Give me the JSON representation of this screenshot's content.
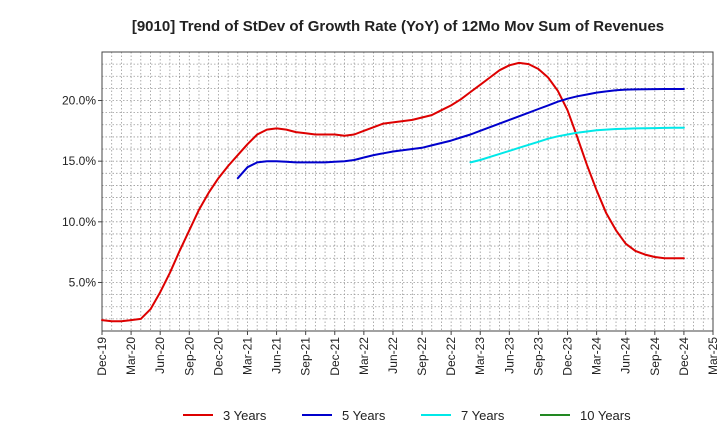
{
  "chart_data": {
    "type": "line",
    "title": "[9010]  Trend of StDev of Growth Rate (YoY) of 12Mo Mov Sum of Revenues",
    "xlabel": "",
    "ylabel": "",
    "ylim": [
      1.0,
      24.0
    ],
    "yticks": [
      "5.0%",
      "10.0%",
      "15.0%",
      "20.0%"
    ],
    "ytick_values": [
      5,
      10,
      15,
      20
    ],
    "xticks": [
      "Dec-19",
      "Mar-20",
      "Jun-20",
      "Sep-20",
      "Dec-20",
      "Mar-21",
      "Jun-21",
      "Sep-21",
      "Dec-21",
      "Mar-22",
      "Jun-22",
      "Sep-22",
      "Dec-22",
      "Mar-23",
      "Jun-23",
      "Sep-23",
      "Dec-23",
      "Mar-24",
      "Jun-24",
      "Sep-24",
      "Dec-24",
      "Mar-25"
    ],
    "x_range": [
      0,
      63
    ],
    "grid": true,
    "legend_position": "bottom",
    "series": [
      {
        "name": "3 Years",
        "color": "#dd0000",
        "x": [
          0,
          1,
          2,
          3,
          4,
          5,
          6,
          7,
          8,
          9,
          10,
          11,
          12,
          13,
          14,
          15,
          16,
          17,
          18,
          19,
          20,
          21,
          22,
          23,
          24,
          25,
          26,
          27,
          28,
          29,
          30,
          31,
          32,
          33,
          34,
          35,
          36,
          37,
          38,
          39,
          40,
          41,
          42,
          43,
          44,
          45,
          46,
          47,
          48,
          49,
          50,
          51,
          52,
          53,
          54,
          55,
          56,
          57,
          58,
          59,
          60
        ],
        "values": [
          1.9,
          1.8,
          1.8,
          1.9,
          2.0,
          2.8,
          4.2,
          5.8,
          7.6,
          9.3,
          11.0,
          12.4,
          13.6,
          14.6,
          15.5,
          16.4,
          17.2,
          17.6,
          17.7,
          17.6,
          17.4,
          17.3,
          17.2,
          17.2,
          17.2,
          17.1,
          17.2,
          17.5,
          17.8,
          18.1,
          18.2,
          18.3,
          18.4,
          18.6,
          18.8,
          19.2,
          19.6,
          20.1,
          20.7,
          21.3,
          21.9,
          22.5,
          22.9,
          23.1,
          23.0,
          22.6,
          21.9,
          20.8,
          19.2,
          17.0,
          14.7,
          12.6,
          10.7,
          9.3,
          8.2,
          7.6,
          7.3,
          7.1,
          7.0,
          7.0,
          7.0
        ]
      },
      {
        "name": "5 Years",
        "color": "#0000cc",
        "x": [
          14,
          15,
          16,
          17,
          18,
          19,
          20,
          21,
          22,
          23,
          24,
          25,
          26,
          27,
          28,
          29,
          30,
          31,
          32,
          33,
          34,
          35,
          36,
          37,
          38,
          39,
          40,
          41,
          42,
          43,
          44,
          45,
          46,
          47,
          48,
          49,
          50,
          51,
          52,
          53,
          54,
          55,
          56,
          57,
          58,
          59,
          60
        ],
        "values": [
          13.6,
          14.5,
          14.9,
          15.0,
          15.0,
          14.95,
          14.9,
          14.9,
          14.9,
          14.9,
          14.95,
          15.0,
          15.1,
          15.3,
          15.5,
          15.65,
          15.8,
          15.9,
          16.0,
          16.1,
          16.3,
          16.5,
          16.7,
          16.95,
          17.2,
          17.5,
          17.8,
          18.1,
          18.4,
          18.7,
          19.0,
          19.3,
          19.6,
          19.9,
          20.15,
          20.35,
          20.5,
          20.65,
          20.75,
          20.85,
          20.9,
          20.92,
          20.93,
          20.94,
          20.95,
          20.95,
          20.95
        ]
      },
      {
        "name": "7 Years",
        "color": "#00e8e8",
        "x": [
          38,
          39,
          40,
          41,
          42,
          43,
          44,
          45,
          46,
          47,
          48,
          49,
          50,
          51,
          52,
          53,
          54,
          55,
          56,
          57,
          58,
          59,
          60
        ],
        "values": [
          14.9,
          15.1,
          15.35,
          15.6,
          15.85,
          16.1,
          16.35,
          16.6,
          16.85,
          17.05,
          17.2,
          17.35,
          17.45,
          17.55,
          17.6,
          17.65,
          17.68,
          17.7,
          17.72,
          17.73,
          17.74,
          17.75,
          17.75
        ]
      },
      {
        "name": "10 Years",
        "color": "#228822",
        "x": [],
        "values": []
      }
    ]
  }
}
